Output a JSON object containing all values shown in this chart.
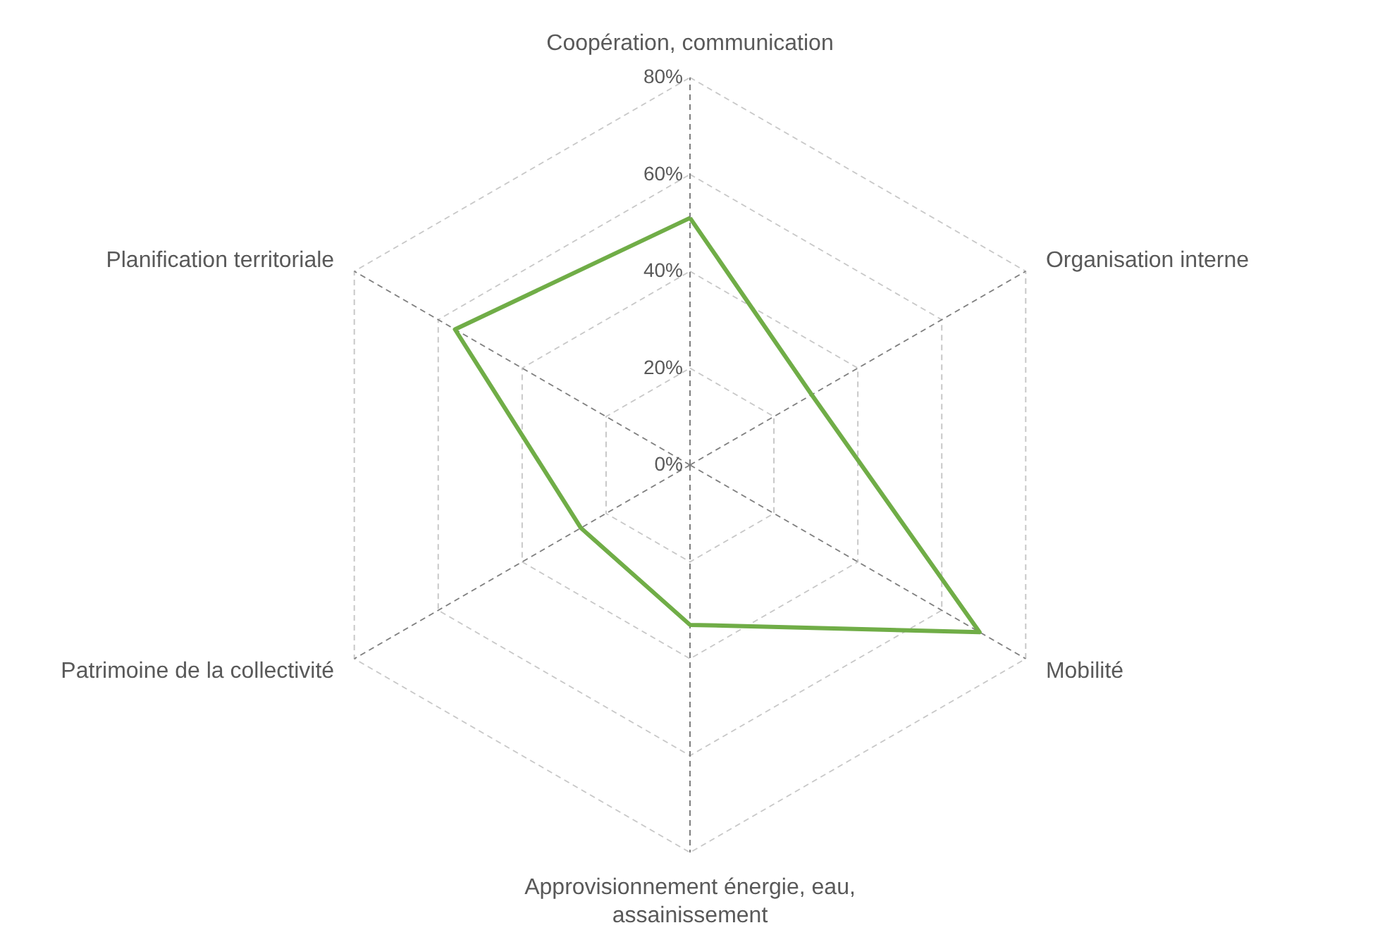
{
  "chart_data": {
    "type": "radar",
    "categories": [
      "Coopération, communication",
      "Organisation interne",
      "Mobilité",
      "Approvisionnement énergie, eau, assainissement",
      "Patrimoine de la collectivité",
      "Planification territoriale"
    ],
    "series": [
      {
        "color": "#70ad47",
        "values": [
          51,
          29,
          69,
          33,
          26,
          56
        ]
      }
    ],
    "ylim": [
      0,
      80
    ],
    "yticks": [
      {
        "value": 0,
        "label": "0%"
      },
      {
        "value": 20,
        "label": "20%"
      },
      {
        "value": 40,
        "label": "40%"
      },
      {
        "value": 60,
        "label": "60%"
      },
      {
        "value": 80,
        "label": "80%"
      }
    ],
    "grid": true
  }
}
